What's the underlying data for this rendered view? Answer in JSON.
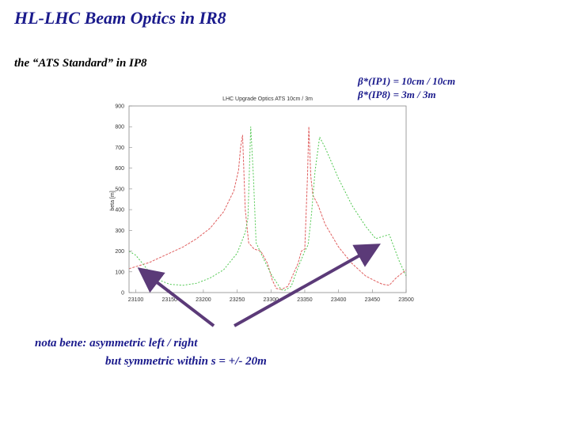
{
  "header": {
    "title": "HL-LHC Beam Optics in IR8",
    "subtitle": "the “ATS Standard” in IP8"
  },
  "betas": {
    "ip1": "β*(IP1) = 10cm / 10cm",
    "ip8": "β*(IP8) = 3m / 3m"
  },
  "note": {
    "line1": "nota bene:   asymmetric  left / right",
    "line2": "but symmetric within s = +/- 20m"
  },
  "colors": {
    "title": "#1a1a8c",
    "arrow": "#5b3a78",
    "beam1": "#e06060",
    "beam2": "#50c850"
  },
  "chart_data": {
    "type": "line",
    "title": "LHC Upgrade Optics ATS 10cm / 3m",
    "ylabel": "beta [m]",
    "xlabel": "",
    "xlim": [
      23090,
      23500
    ],
    "ylim": [
      0,
      900
    ],
    "xticks": [
      "23100",
      "23150",
      "23200",
      "23250",
      "23300",
      "23350",
      "23400",
      "23450",
      "23500"
    ],
    "yticks": [
      "0",
      "100",
      "200",
      "300",
      "400",
      "500",
      "600",
      "700",
      "800",
      "900"
    ],
    "series": [
      {
        "color": "#e06060",
        "x": [
          23090,
          23100,
          23110,
          23120,
          23130,
          23150,
          23170,
          23190,
          23210,
          23230,
          23245,
          23252,
          23255,
          23258,
          23262,
          23267,
          23275,
          23285,
          23295,
          23302,
          23308,
          23315,
          23325,
          23340,
          23345,
          23350,
          23354,
          23356,
          23359,
          23362,
          23370,
          23380,
          23400,
          23420,
          23440,
          23455,
          23465,
          23475,
          23485,
          23500
        ],
        "y": [
          115,
          125,
          135,
          145,
          160,
          190,
          220,
          260,
          310,
          390,
          490,
          590,
          700,
          760,
          400,
          240,
          210,
          200,
          140,
          60,
          20,
          15,
          30,
          140,
          200,
          210,
          560,
          800,
          560,
          470,
          420,
          330,
          220,
          140,
          80,
          55,
          40,
          35,
          70,
          110
        ]
      },
      {
        "color": "#50c850",
        "x": [
          23090,
          23100,
          23110,
          23120,
          23135,
          23150,
          23170,
          23190,
          23210,
          23230,
          23250,
          23262,
          23266,
          23270,
          23274,
          23278,
          23288,
          23300,
          23310,
          23315,
          23320,
          23330,
          23340,
          23350,
          23355,
          23360,
          23365,
          23372,
          23380,
          23400,
          23420,
          23440,
          23455,
          23465,
          23475,
          23490,
          23500
        ],
        "y": [
          200,
          180,
          140,
          100,
          60,
          40,
          35,
          45,
          70,
          110,
          190,
          290,
          360,
          800,
          560,
          240,
          170,
          90,
          40,
          15,
          10,
          30,
          120,
          200,
          230,
          380,
          580,
          750,
          700,
          550,
          420,
          320,
          260,
          270,
          280,
          150,
          80
        ]
      }
    ]
  }
}
